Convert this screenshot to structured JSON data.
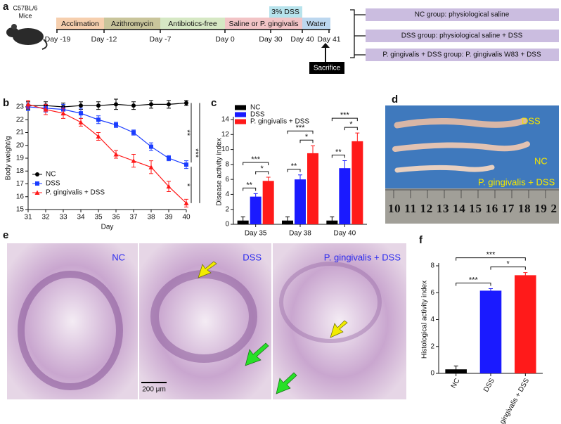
{
  "panel_labels": [
    "a",
    "b",
    "c",
    "d",
    "e",
    "f"
  ],
  "timeline": {
    "subject": [
      "C57BL/6",
      "Mice"
    ],
    "phases": [
      "Acclimation",
      "Azithromycin",
      "Antibiotics-free",
      "Saline or P. gingivalis",
      "Water"
    ],
    "dss": "3% DSS",
    "days": [
      "Day -19",
      "Day -12",
      "Day -7",
      "Day 0",
      "Day 30",
      "Day 40",
      "Day 41"
    ],
    "endpoint": "Sacrifice",
    "groups": [
      "NC group: physiological saline",
      "DSS group: physiological saline + DSS",
      "P. gingivalis + DSS group: P. gingivalis W83 + DSS"
    ]
  },
  "chart_data": [
    {
      "type": "line",
      "x_label": "Day",
      "y_label": "Body weight/g",
      "x": [
        31,
        32,
        33,
        34,
        35,
        36,
        37,
        38,
        39,
        40
      ],
      "xlim": [
        31,
        40
      ],
      "xticks": [
        31,
        32,
        33,
        34,
        35,
        36,
        37,
        38,
        39,
        40
      ],
      "ylim": [
        15,
        23
      ],
      "yticks": [
        15,
        16,
        17,
        18,
        19,
        20,
        21,
        22,
        23
      ],
      "legend": "lower left",
      "series": [
        {
          "name": "NC",
          "color": "#000000",
          "marker": "circle",
          "values": [
            23.1,
            23.1,
            23.0,
            23.1,
            23.1,
            23.2,
            23.1,
            23.2,
            23.2,
            23.3
          ],
          "errors": [
            0.3,
            0.3,
            0.3,
            0.3,
            0.3,
            0.4,
            0.3,
            0.3,
            0.3,
            0.2
          ]
        },
        {
          "name": "DSS",
          "color": "#1a3cff",
          "marker": "square",
          "values": [
            23.0,
            22.9,
            22.8,
            22.5,
            22.0,
            21.6,
            21.0,
            19.9,
            19.0,
            18.5
          ],
          "errors": [
            0.3,
            0.3,
            0.4,
            0.4,
            0.3,
            0.2,
            0.2,
            0.3,
            0.2,
            0.3
          ]
        },
        {
          "name": "P. gingivalis + DSS",
          "color": "#ff1a1a",
          "marker": "triangle",
          "values": [
            23.2,
            22.8,
            22.5,
            21.8,
            20.7,
            19.3,
            18.8,
            18.3,
            16.8,
            15.5
          ],
          "errors": [
            0.3,
            0.4,
            0.4,
            0.3,
            0.3,
            0.3,
            0.5,
            0.5,
            0.4,
            0.3
          ]
        }
      ],
      "significance": [
        "**",
        "***",
        "*"
      ]
    },
    {
      "type": "bar",
      "y_label": "Disease activity index",
      "categories": [
        "Day 35",
        "Day 38",
        "Day 40"
      ],
      "ylim": [
        0,
        14
      ],
      "yticks": [
        0,
        2,
        4,
        6,
        8,
        10,
        12,
        14
      ],
      "legend": "upper left",
      "series": [
        {
          "name": "NC",
          "color": "#000000",
          "values": [
            0.5,
            0.5,
            0.5
          ],
          "errors": [
            0.5,
            0.5,
            0.5
          ]
        },
        {
          "name": "DSS",
          "color": "#1a1aff",
          "values": [
            3.7,
            6.0,
            7.5
          ],
          "errors": [
            0.4,
            0.6,
            1.0
          ]
        },
        {
          "name": "P. gingivalis + DSS",
          "color": "#ff1a1a",
          "values": [
            5.8,
            9.5,
            11.1
          ],
          "errors": [
            0.5,
            1.0,
            1.1
          ]
        }
      ],
      "significance": [
        [
          "**",
          "***",
          "*"
        ],
        [
          "**",
          "***",
          "*"
        ],
        [
          "**",
          "***",
          "*"
        ]
      ]
    },
    {
      "type": "bar",
      "y_label": "Histological activity index",
      "categories": [
        "NC",
        "DSS",
        "P . gingivalis + DSS"
      ],
      "values": [
        0.3,
        6.15,
        7.3
      ],
      "errors": [
        0.25,
        0.15,
        0.2
      ],
      "colors": [
        "#000000",
        "#1a1aff",
        "#ff1a1a"
      ],
      "ylim": [
        0,
        8
      ],
      "yticks": [
        0,
        2,
        4,
        6,
        8
      ],
      "significance": [
        "***",
        "***",
        "*"
      ]
    }
  ],
  "photo": {
    "labels": [
      "DSS",
      "NC",
      "P. gingivalis + DSS"
    ],
    "ruler": "10 11 12 13 14 15 16 17 18 19 2"
  },
  "histology": {
    "labels": [
      "NC",
      "DSS",
      "P. gingivalis + DSS"
    ],
    "scale_bar": "200 μm"
  }
}
